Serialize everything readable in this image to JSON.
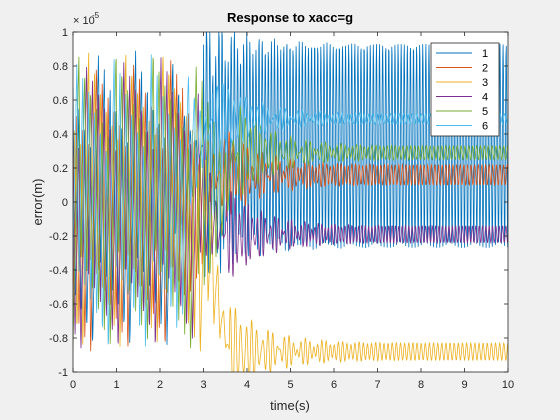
{
  "chart_data": {
    "type": "line",
    "title": "Response to xacc=g",
    "xlabel": "time(s)",
    "ylabel": "error(m)",
    "exponent_label": "× 10",
    "exponent_power": "-5",
    "xlim": [
      0,
      10
    ],
    "ylim": [
      -1,
      1
    ],
    "x_ticks": [
      0,
      1,
      2,
      3,
      4,
      5,
      6,
      7,
      8,
      9,
      10
    ],
    "x_tick_labels": [
      "0",
      "1",
      "2",
      "3",
      "4",
      "5",
      "6",
      "7",
      "8",
      "9",
      "10"
    ],
    "y_ticks": [
      -1,
      -0.8,
      -0.6,
      -0.4,
      -0.2,
      0,
      0.2,
      0.4,
      0.6,
      0.8,
      1
    ],
    "y_tick_labels": [
      "-1",
      "-0.8",
      "-0.6",
      "-0.4",
      "-0.2",
      "0",
      "0.2",
      "0.4",
      "0.6",
      "0.8",
      "1"
    ],
    "grid": false,
    "legend_position": "top-right",
    "series": [
      {
        "name": "1",
        "color": "#0072BD",
        "steady_state_center": 0.33,
        "steady_state_amplitude": 0.6,
        "settle_time": 3.0
      },
      {
        "name": "2",
        "color": "#D95319",
        "steady_state_center": 0.16,
        "steady_state_amplitude": 0.06,
        "settle_time": 3.4
      },
      {
        "name": "3",
        "color": "#EDB120",
        "steady_state_center": -0.88,
        "steady_state_amplitude": 0.05,
        "settle_time": 3.6
      },
      {
        "name": "4",
        "color": "#7E2F8E",
        "steady_state_center": -0.19,
        "steady_state_amplitude": 0.05,
        "settle_time": 3.5
      },
      {
        "name": "5",
        "color": "#77AC30",
        "steady_state_center": 0.29,
        "steady_state_amplitude": 0.04,
        "settle_time": 3.8
      },
      {
        "name": "6",
        "color": "#4DBEEE",
        "steady_state_center": 0.49,
        "steady_state_amplitude": 0.03,
        "settle_time": 3.2
      }
    ]
  }
}
